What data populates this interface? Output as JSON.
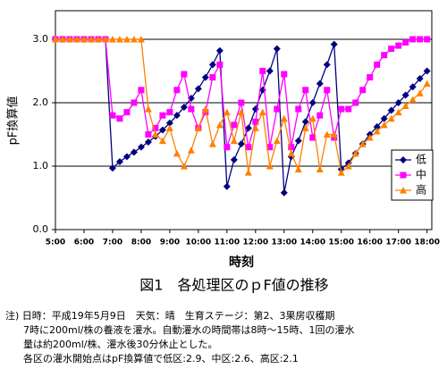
{
  "chart_data": {
    "type": "line",
    "title": "図1　各処理区のｐF値の推移",
    "xlabel": "時刻",
    "ylabel": "pF換算値",
    "x": [
      300,
      315,
      330,
      345,
      360,
      375,
      390,
      405,
      420,
      435,
      450,
      465,
      480,
      495,
      510,
      525,
      540,
      555,
      570,
      585,
      600,
      615,
      630,
      645,
      660,
      675,
      690,
      705,
      720,
      735,
      750,
      765,
      780,
      795,
      810,
      825,
      840,
      855,
      870,
      885,
      900,
      915,
      930,
      945,
      960,
      975,
      990,
      1005,
      1020,
      1035,
      1050,
      1065,
      1080
    ],
    "series": [
      {
        "name": "低",
        "color": "#000080",
        "marker": "diamond",
        "values": [
          3.0,
          3.0,
          3.0,
          3.0,
          3.0,
          3.0,
          3.0,
          3.0,
          0.97,
          1.07,
          1.15,
          1.22,
          1.3,
          1.38,
          1.47,
          1.57,
          1.68,
          1.8,
          1.93,
          2.07,
          2.22,
          2.4,
          2.6,
          2.82,
          0.68,
          1.1,
          1.35,
          1.6,
          1.9,
          2.2,
          2.5,
          2.85,
          0.58,
          1.15,
          1.4,
          1.7,
          2.0,
          2.3,
          2.6,
          2.92,
          0.95,
          1.05,
          1.2,
          1.35,
          1.5,
          1.62,
          1.75,
          1.88,
          2.0,
          2.12,
          2.25,
          2.38,
          2.5
        ]
      },
      {
        "name": "中",
        "color": "#ff00ff",
        "marker": "square",
        "values": [
          3.0,
          3.0,
          3.0,
          3.0,
          3.0,
          3.0,
          3.0,
          3.0,
          1.8,
          1.75,
          1.85,
          2.0,
          2.2,
          1.5,
          1.6,
          1.8,
          1.85,
          2.2,
          2.45,
          1.9,
          1.6,
          1.85,
          2.4,
          2.6,
          1.3,
          1.65,
          2.0,
          1.3,
          1.7,
          2.5,
          1.3,
          1.9,
          2.45,
          1.3,
          1.9,
          2.2,
          1.45,
          1.8,
          2.2,
          1.45,
          1.9,
          1.9,
          2.0,
          2.2,
          2.4,
          2.6,
          2.75,
          2.85,
          2.9,
          2.95,
          3.0,
          3.0,
          3.0
        ]
      },
      {
        "name": "高",
        "color": "#ff8000",
        "marker": "triangle",
        "values": [
          3.0,
          3.0,
          3.0,
          3.0,
          3.0,
          3.0,
          3.0,
          3.0,
          3.0,
          3.0,
          3.0,
          3.0,
          3.0,
          1.9,
          1.5,
          1.4,
          1.6,
          1.2,
          1.0,
          1.25,
          1.6,
          1.9,
          1.35,
          1.65,
          1.85,
          1.4,
          1.85,
          0.9,
          1.6,
          1.85,
          1.0,
          1.4,
          1.75,
          1.2,
          0.95,
          1.6,
          1.75,
          0.95,
          1.5,
          1.5,
          0.9,
          1.0,
          1.2,
          1.35,
          1.45,
          1.55,
          1.65,
          1.75,
          1.85,
          1.95,
          2.05,
          2.15,
          2.3
        ]
      }
    ],
    "xlim": [
      300,
      1090
    ],
    "ylim": [
      0,
      3.45
    ],
    "xticks": [
      {
        "value": 300,
        "label": "5:00"
      },
      {
        "value": 360,
        "label": "6:00"
      },
      {
        "value": 420,
        "label": "7:00"
      },
      {
        "value": 480,
        "label": "8:00"
      },
      {
        "value": 540,
        "label": "9:00"
      },
      {
        "value": 600,
        "label": "10:00"
      },
      {
        "value": 660,
        "label": "11:00"
      },
      {
        "value": 720,
        "label": "12:00"
      },
      {
        "value": 780,
        "label": "13:00"
      },
      {
        "value": 840,
        "label": "14:00"
      },
      {
        "value": 900,
        "label": "15:00"
      },
      {
        "value": 960,
        "label": "16:00"
      },
      {
        "value": 1020,
        "label": "17:00"
      },
      {
        "value": 1080,
        "label": "18:00"
      }
    ],
    "yticks": [
      {
        "value": 0,
        "label": "0.0"
      },
      {
        "value": 1,
        "label": "1.0"
      },
      {
        "value": 2,
        "label": "2.0"
      },
      {
        "value": 3,
        "label": "3.0"
      }
    ],
    "grid": true,
    "legend": "right",
    "notes": [
      "注) 日時：平成19年5月9日　天気：晴　生育ステージ：第2、3果房収穫期",
      "7時に200ml/株の養液を灌水。自動灌水の時間帯は8時～15時、1回の灌水",
      "量は約200ml/株、灌水後30分休止とした。",
      "各区の灌水開始点はpF換算値で低区:2.9、中区:2.6、高区:2.1"
    ]
  }
}
